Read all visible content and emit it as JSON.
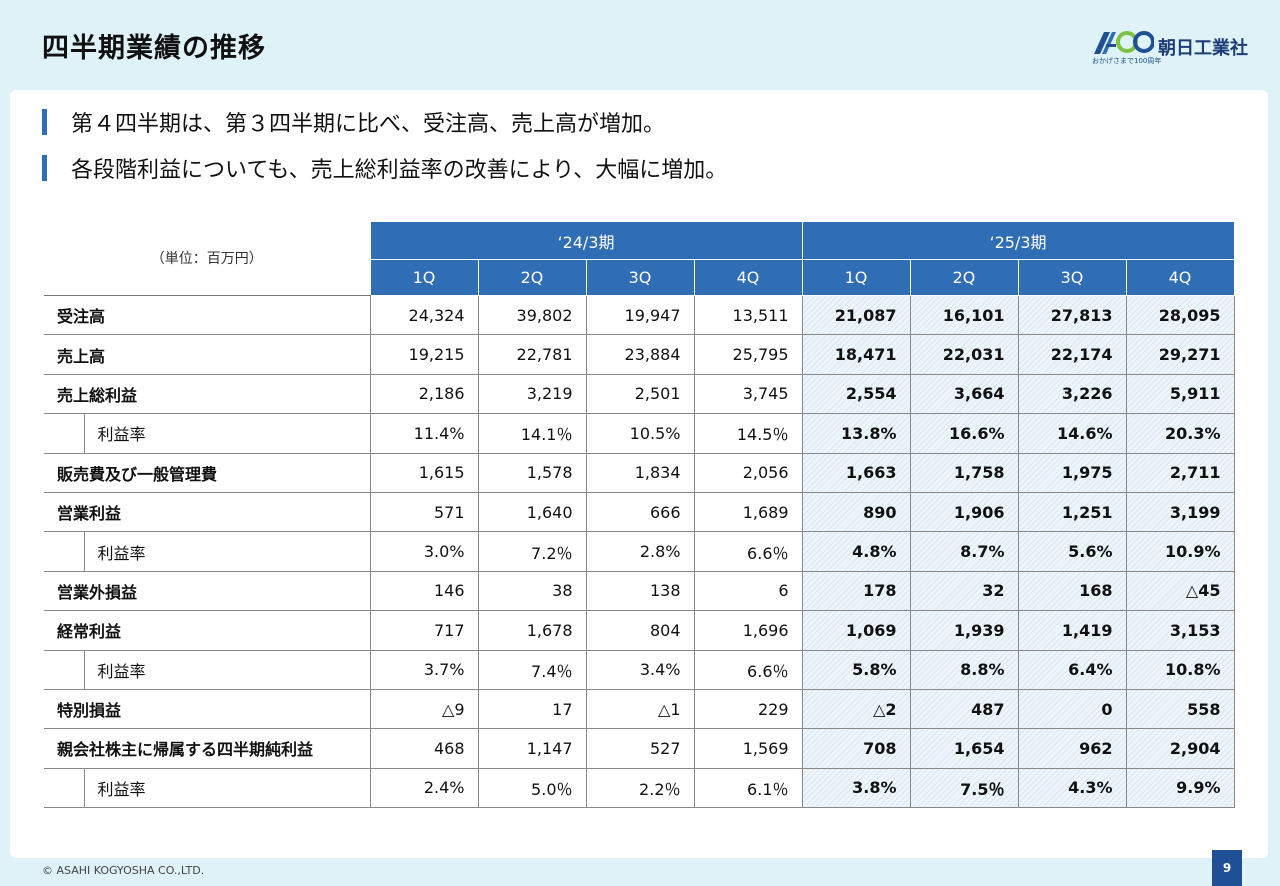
{
  "header": {
    "title": "四半期業績の推移",
    "logo_tagline": "おかげさまで100周年",
    "company_name": "朝日工業社",
    "logo_colors": {
      "primary": "#1f4f95",
      "accent": "#7dc242"
    }
  },
  "bullets": [
    "第４四半期は、第３四半期に比べ、受注高、売上高が増加。",
    "各段階利益についても、売上総利益率の改善により、大幅に増加。"
  ],
  "table": {
    "unit_label": "（単位：百万円）",
    "periods": [
      "‘24/3期",
      "‘25/3期"
    ],
    "quarters": [
      "1Q",
      "2Q",
      "3Q",
      "4Q",
      "1Q",
      "2Q",
      "3Q",
      "4Q"
    ],
    "rows": [
      {
        "label": "受注高",
        "sub": false,
        "values": [
          "24,324",
          "39,802",
          "19,947",
          "13,511",
          "21,087",
          "16,101",
          "27,813",
          "28,095"
        ]
      },
      {
        "label": "売上高",
        "sub": false,
        "values": [
          "19,215",
          "22,781",
          "23,884",
          "25,795",
          "18,471",
          "22,031",
          "22,174",
          "29,271"
        ]
      },
      {
        "label": "売上総利益",
        "sub": false,
        "values": [
          "2,186",
          "3,219",
          "2,501",
          "3,745",
          "2,554",
          "3,664",
          "3,226",
          "5,911"
        ]
      },
      {
        "label": "利益率",
        "sub": true,
        "values": [
          "11.4%",
          "14.1％",
          "10.5%",
          "14.5％",
          "13.8%",
          "16.6%",
          "14.6%",
          "20.3%"
        ]
      },
      {
        "label": "販売費及び一般管理費",
        "sub": false,
        "values": [
          "1,615",
          "1,578",
          "1,834",
          "2,056",
          "1,663",
          "1,758",
          "1,975",
          "2,711"
        ]
      },
      {
        "label": "営業利益",
        "sub": false,
        "values": [
          "571",
          "1,640",
          "666",
          "1,689",
          "890",
          "1,906",
          "1,251",
          "3,199"
        ]
      },
      {
        "label": "利益率",
        "sub": true,
        "values": [
          "3.0%",
          "7.2％",
          "2.8%",
          "6.6％",
          "4.8%",
          "8.7%",
          "5.6%",
          "10.9%"
        ]
      },
      {
        "label": "営業外損益",
        "sub": false,
        "values": [
          "146",
          "38",
          "138",
          "6",
          "178",
          "32",
          "168",
          "△45"
        ]
      },
      {
        "label": "経常利益",
        "sub": false,
        "values": [
          "717",
          "1,678",
          "804",
          "1,696",
          "1,069",
          "1,939",
          "1,419",
          "3,153"
        ]
      },
      {
        "label": "利益率",
        "sub": true,
        "values": [
          "3.7%",
          "7.4％",
          "3.4%",
          "6.6％",
          "5.8%",
          "8.8%",
          "6.4%",
          "10.8%"
        ]
      },
      {
        "label": "特別損益",
        "sub": false,
        "values": [
          "△9",
          "17",
          "△1",
          "229",
          "△2",
          "487",
          "0",
          "558"
        ]
      },
      {
        "label": "親会社株主に帰属する四半期純利益",
        "sub": false,
        "values": [
          "468",
          "1,147",
          "527",
          "1,569",
          "708",
          "1,654",
          "962",
          "2,904"
        ]
      },
      {
        "label": "利益率",
        "sub": true,
        "values": [
          "2.4%",
          "5.0％",
          "2.2％",
          "6.1％",
          "3.8%",
          "7.5％",
          "4.3%",
          "9.9%"
        ]
      }
    ]
  },
  "footer": {
    "copyright": "© ASAHI KOGYOSHA CO.,LTD.",
    "page_number": "9"
  }
}
